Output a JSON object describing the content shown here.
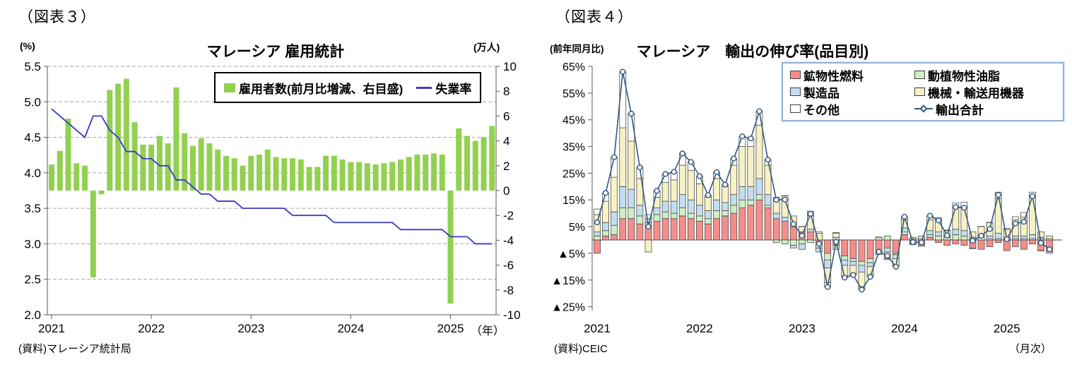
{
  "chart_data": [
    {
      "id": "employment",
      "type": "bar",
      "tag": "（図表３）",
      "title": "マレーシア 雇用統計",
      "unit_left": "(%)",
      "unit_right": "(万人)",
      "x_unit": "（年）",
      "source": "(資料)マレーシア統計局",
      "y_left": {
        "min": 2.0,
        "max": 5.5,
        "ticks": [
          "5.5",
          "5.0",
          "4.5",
          "4.0",
          "3.5",
          "3.0",
          "2.5",
          "2.0"
        ],
        "values": [
          5.5,
          5.0,
          4.5,
          4.0,
          3.5,
          3.0,
          2.5,
          2.0
        ]
      },
      "y_right": {
        "min": -10,
        "max": 10,
        "ticks": [
          "10",
          "8",
          "6",
          "4",
          "2",
          "0",
          "-2",
          "-4",
          "-6",
          "-8",
          "-10"
        ],
        "values": [
          10,
          8,
          6,
          4,
          2,
          0,
          -2,
          -4,
          -6,
          -8,
          -10
        ]
      },
      "x_ticks": [
        {
          "label": "2021",
          "month_index": 0
        },
        {
          "label": "2022",
          "month_index": 12
        },
        {
          "label": "2023",
          "month_index": 24
        },
        {
          "label": "2024",
          "month_index": 36
        },
        {
          "label": "2025",
          "month_index": 48
        }
      ],
      "months": [
        "2021-01",
        "2021-02",
        "2021-03",
        "2021-04",
        "2021-05",
        "2021-06",
        "2021-07",
        "2021-08",
        "2021-09",
        "2021-10",
        "2021-11",
        "2021-12",
        "2022-01",
        "2022-02",
        "2022-03",
        "2022-04",
        "2022-05",
        "2022-06",
        "2022-07",
        "2022-08",
        "2022-09",
        "2022-10",
        "2022-11",
        "2022-12",
        "2023-01",
        "2023-02",
        "2023-03",
        "2023-04",
        "2023-05",
        "2023-06",
        "2023-07",
        "2023-08",
        "2023-09",
        "2023-10",
        "2023-11",
        "2023-12",
        "2024-01",
        "2024-02",
        "2024-03",
        "2024-04",
        "2024-05",
        "2024-06",
        "2024-07",
        "2024-08",
        "2024-09",
        "2024-10",
        "2024-11",
        "2024-12",
        "2025-01",
        "2025-02",
        "2025-03",
        "2025-04",
        "2025-05",
        "2025-06"
      ],
      "bars": {
        "name": "雇用者数(前月比増減、右目盛)",
        "color": "#92D050",
        "values": [
          2.1,
          3.2,
          5.8,
          2.2,
          2.0,
          -7.0,
          -0.3,
          8.1,
          8.6,
          9.0,
          5.5,
          3.7,
          3.7,
          4.4,
          3.8,
          8.3,
          4.6,
          3.6,
          4.2,
          3.8,
          3.3,
          2.8,
          2.6,
          2.0,
          2.8,
          2.9,
          3.3,
          2.7,
          2.6,
          2.6,
          2.5,
          1.9,
          1.9,
          2.8,
          2.8,
          2.5,
          2.3,
          2.3,
          2.2,
          2.1,
          2.2,
          2.3,
          2.5,
          2.7,
          2.9,
          2.9,
          3.0,
          2.9,
          -9.1,
          5.0,
          4.4,
          4.0,
          4.3,
          5.2
        ]
      },
      "line": {
        "name": "失業率",
        "color": "#3A3AC8",
        "values": [
          4.9,
          4.8,
          4.7,
          4.6,
          4.5,
          4.8,
          4.8,
          4.6,
          4.5,
          4.3,
          4.3,
          4.2,
          4.2,
          4.1,
          4.1,
          3.9,
          3.9,
          3.8,
          3.7,
          3.7,
          3.6,
          3.6,
          3.6,
          3.5,
          3.5,
          3.5,
          3.5,
          3.5,
          3.5,
          3.4,
          3.4,
          3.4,
          3.4,
          3.4,
          3.3,
          3.3,
          3.3,
          3.3,
          3.3,
          3.3,
          3.3,
          3.3,
          3.2,
          3.2,
          3.2,
          3.2,
          3.2,
          3.2,
          3.1,
          3.1,
          3.1,
          3.0,
          3.0,
          3.0
        ]
      }
    },
    {
      "id": "exports",
      "type": "bar",
      "tag": "（図表４）",
      "title": "マレーシア　輸出の伸び率(品目別)",
      "y_axis_label": "(前年同月比)",
      "x_unit": "（月次）",
      "source": "(資料)CEIC",
      "y_ticks": [
        "65%",
        "55%",
        "45%",
        "35%",
        "25%",
        "15%",
        "5%",
        "▲5%",
        "▲15%",
        "▲25%"
      ],
      "y_tick_values": [
        65,
        55,
        45,
        35,
        25,
        15,
        5,
        -5,
        -15,
        -25
      ],
      "x_ticks": [
        {
          "label": "2021",
          "month_index": 0
        },
        {
          "label": "2022",
          "month_index": 12
        },
        {
          "label": "2023",
          "month_index": 24
        },
        {
          "label": "2024",
          "month_index": 36
        },
        {
          "label": "2025",
          "month_index": 48
        }
      ],
      "months": [
        "2021-01",
        "2021-02",
        "2021-03",
        "2021-04",
        "2021-05",
        "2021-06",
        "2021-07",
        "2021-08",
        "2021-09",
        "2021-10",
        "2021-11",
        "2021-12",
        "2022-01",
        "2022-02",
        "2022-03",
        "2022-04",
        "2022-05",
        "2022-06",
        "2022-07",
        "2022-08",
        "2022-09",
        "2022-10",
        "2022-11",
        "2022-12",
        "2023-01",
        "2023-02",
        "2023-03",
        "2023-04",
        "2023-05",
        "2023-06",
        "2023-07",
        "2023-08",
        "2023-09",
        "2023-10",
        "2023-11",
        "2023-12",
        "2024-01",
        "2024-02",
        "2024-03",
        "2024-04",
        "2024-05",
        "2024-06",
        "2024-07",
        "2024-08",
        "2024-09",
        "2024-10",
        "2024-11",
        "2024-12",
        "2025-01",
        "2025-02",
        "2025-03",
        "2025-04",
        "2025-05",
        "2025-06"
      ],
      "series": [
        {
          "key": "fuels",
          "name": "鉱物性燃料",
          "color": "#F58E8B",
          "values": [
            -5.0,
            1.5,
            2.0,
            8.0,
            8.0,
            6.0,
            5.5,
            7.0,
            8.0,
            8.0,
            9.0,
            8.0,
            7.0,
            6.0,
            8.0,
            9.0,
            10.0,
            12.0,
            13.0,
            15.0,
            12.0,
            8.0,
            7.0,
            5.0,
            3.0,
            3.0,
            -1.0,
            -5.0,
            -2.0,
            -6.0,
            -7.0,
            -8.0,
            -7.0,
            -4.0,
            -3.0,
            -5.0,
            2.0,
            -1.0,
            -1.5,
            1.0,
            -1.0,
            -2.0,
            -1.5,
            -2.0,
            -3.0,
            -3.5,
            -2.5,
            -1.0,
            -4.0,
            -2.5,
            -3.5,
            -1.5,
            -4.0,
            -3.5
          ]
        },
        {
          "key": "oils",
          "name": "動植物性油脂",
          "color": "#CDEFC4",
          "values": [
            1.5,
            2.0,
            3.5,
            4.0,
            4.0,
            3.0,
            1.0,
            2.5,
            2.5,
            2.0,
            3.0,
            2.0,
            2.0,
            2.0,
            3.0,
            2.0,
            3.0,
            3.0,
            2.0,
            2.0,
            1.0,
            -1.0,
            -1.5,
            -2.0,
            -1.5,
            -1.0,
            -2.0,
            -2.5,
            -1.5,
            -1.5,
            -1.0,
            -1.5,
            -1.5,
            1.0,
            1.5,
            -0.5,
            1.0,
            0.5,
            0.5,
            1.0,
            1.5,
            1.0,
            2.0,
            1.5,
            0.5,
            1.0,
            0.5,
            0.5,
            0.5,
            0.5,
            0.5,
            0.5,
            0.5,
            0.5
          ]
        },
        {
          "key": "manufactured",
          "name": "製造品",
          "color": "#C3DEF1",
          "values": [
            1.5,
            3.0,
            5.0,
            8.0,
            7.0,
            4.0,
            1.5,
            2.5,
            4.0,
            4.5,
            5.0,
            5.0,
            4.0,
            3.0,
            4.0,
            3.0,
            4.0,
            5.0,
            5.0,
            6.0,
            4.0,
            2.0,
            1.5,
            -1.0,
            -2.0,
            1.0,
            -1.5,
            -3.0,
            1.0,
            -2.0,
            -1.5,
            -2.5,
            -1.5,
            -1.0,
            -1.5,
            -1.5,
            1.5,
            -0.5,
            -0.5,
            1.5,
            1.5,
            0.5,
            2.0,
            2.0,
            0.5,
            1.0,
            1.0,
            2.0,
            0.5,
            1.0,
            1.0,
            1.5,
            0.5,
            -1.0
          ]
        },
        {
          "key": "machinery",
          "name": "機械・輸送用機器",
          "color": "#F7F2C4",
          "values": [
            6.5,
            8.0,
            13.0,
            22.0,
            18.0,
            10.0,
            -4.5,
            4.0,
            7.0,
            8.0,
            11.0,
            11.0,
            8.0,
            5.0,
            8.0,
            6.0,
            11.0,
            15.0,
            15.0,
            20.0,
            11.0,
            6.0,
            8.0,
            4.0,
            2.0,
            5.0,
            2.5,
            -5.5,
            1.5,
            -4.0,
            -3.0,
            -5.5,
            -3.0,
            -0.5,
            -2.5,
            -2.5,
            3.0,
            0.5,
            1.0,
            4.0,
            4.0,
            2.0,
            8.0,
            9.0,
            2.0,
            3.0,
            5.0,
            13.0,
            3.0,
            6.0,
            7.0,
            14.0,
            2.0,
            1.0
          ]
        },
        {
          "key": "other",
          "name": "その他",
          "color": "#FFFFFF",
          "values": [
            2.1,
            3.1,
            7.5,
            21.0,
            10.3,
            4.2,
            1.5,
            2.4,
            3.2,
            3.0,
            4.4,
            3.2,
            2.9,
            0.8,
            2.4,
            0.7,
            2.5,
            3.8,
            3.0,
            5.2,
            2.1,
            0.0,
            0.1,
            0.0,
            0.1,
            1.8,
            0.6,
            -1.6,
            0.3,
            -0.6,
            -0.6,
            -1.1,
            -0.8,
            0.1,
            -0.4,
            -0.5,
            1.2,
            -0.3,
            -0.4,
            1.6,
            1.3,
            0.2,
            1.8,
            1.6,
            -0.3,
            0.1,
            0.1,
            2.4,
            0.3,
            1.2,
            1.8,
            1.9,
            -0.1,
            -0.5
          ]
        }
      ],
      "total": {
        "name": "輸出合計",
        "color": "#33587F",
        "values": [
          6.6,
          17.6,
          31.0,
          63.0,
          47.3,
          27.2,
          5.0,
          18.4,
          24.7,
          25.5,
          32.4,
          29.2,
          23.9,
          16.8,
          25.4,
          20.7,
          30.5,
          38.8,
          38.0,
          48.2,
          30.1,
          15.0,
          15.1,
          6.0,
          1.6,
          9.8,
          -1.4,
          -17.6,
          -0.7,
          -14.1,
          -13.1,
          -18.6,
          -13.8,
          -4.4,
          -5.9,
          -10.0,
          8.7,
          -0.8,
          -0.9,
          9.1,
          7.3,
          1.7,
          12.3,
          12.1,
          -0.3,
          1.6,
          4.1,
          16.9,
          0.3,
          6.2,
          6.8,
          16.4,
          -1.1,
          -3.5
        ]
      }
    }
  ]
}
